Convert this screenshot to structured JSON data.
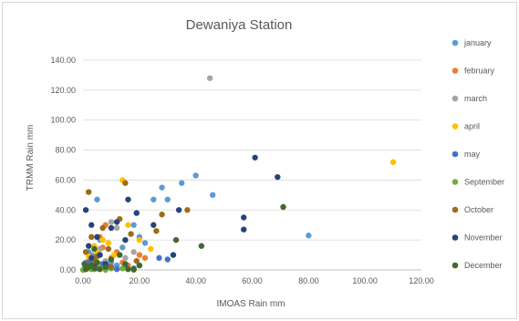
{
  "chart_data": {
    "type": "scatter",
    "title": "Dewaniya Station",
    "xlabel": "IMOAS Rain mm",
    "ylabel": "TRMM  Rain mm",
    "xlim": [
      0,
      120
    ],
    "ylim": [
      0,
      140
    ],
    "x_ticks": [
      "0.00",
      "20.00",
      "40.00",
      "60.00",
      "80.00",
      "100.00",
      "120.00"
    ],
    "y_ticks": [
      "0.00",
      "20.00",
      "40.00",
      "60.00",
      "80.00",
      "100.00",
      "120.00",
      "140.00"
    ],
    "grid": "horizontal",
    "legend_position": "right",
    "series": [
      {
        "name": "january",
        "color": "#5b9bd5",
        "points": [
          [
            0.5,
            1
          ],
          [
            1,
            5
          ],
          [
            2,
            12
          ],
          [
            3,
            2
          ],
          [
            4,
            8
          ],
          [
            5,
            47
          ],
          [
            6,
            20
          ],
          [
            8,
            1
          ],
          [
            10,
            5
          ],
          [
            12,
            3
          ],
          [
            14,
            15
          ],
          [
            18,
            30
          ],
          [
            20,
            22
          ],
          [
            22,
            18
          ],
          [
            25,
            47
          ],
          [
            28,
            55
          ],
          [
            30,
            47
          ],
          [
            35,
            58
          ],
          [
            40,
            63
          ],
          [
            46,
            50
          ],
          [
            80,
            23
          ],
          [
            3,
            10
          ],
          [
            6,
            14
          ]
        ]
      },
      {
        "name": "february",
        "color": "#ed7d31",
        "points": [
          [
            1,
            2
          ],
          [
            2,
            6
          ],
          [
            3,
            4
          ],
          [
            5,
            10
          ],
          [
            6,
            22
          ],
          [
            7,
            15
          ],
          [
            8,
            30
          ],
          [
            10,
            8
          ],
          [
            12,
            12
          ],
          [
            14,
            5
          ],
          [
            16,
            3
          ],
          [
            20,
            10
          ],
          [
            22,
            8
          ],
          [
            2,
            1
          ],
          [
            4,
            3
          ]
        ]
      },
      {
        "name": "march",
        "color": "#a5a5a5",
        "points": [
          [
            1,
            1
          ],
          [
            2,
            3
          ],
          [
            3,
            5
          ],
          [
            5,
            2
          ],
          [
            6,
            14
          ],
          [
            8,
            6
          ],
          [
            10,
            32
          ],
          [
            12,
            28
          ],
          [
            15,
            8
          ],
          [
            18,
            12
          ],
          [
            45,
            128
          ],
          [
            4,
            0.5
          ]
        ]
      },
      {
        "name": "april",
        "color": "#ffc000",
        "points": [
          [
            1,
            3
          ],
          [
            2,
            9
          ],
          [
            3,
            1
          ],
          [
            4,
            16
          ],
          [
            5,
            12
          ],
          [
            7,
            20
          ],
          [
            9,
            18
          ],
          [
            11,
            10
          ],
          [
            14,
            60
          ],
          [
            16,
            30
          ],
          [
            20,
            20
          ],
          [
            24,
            14
          ],
          [
            110,
            72
          ],
          [
            6,
            4
          ]
        ]
      },
      {
        "name": "may",
        "color": "#4472c4",
        "points": [
          [
            0.5,
            0.5
          ],
          [
            1,
            1
          ],
          [
            2,
            2
          ],
          [
            3,
            3
          ],
          [
            4,
            6
          ],
          [
            5,
            1
          ],
          [
            7,
            4
          ],
          [
            9,
            2
          ],
          [
            12,
            0.5
          ],
          [
            15,
            3
          ],
          [
            18,
            1
          ],
          [
            27,
            8
          ],
          [
            30,
            7
          ],
          [
            2,
            5
          ]
        ]
      },
      {
        "name": "September",
        "color": "#70ad47",
        "points": [
          [
            0,
            0
          ],
          [
            1,
            0.5
          ],
          [
            2,
            1
          ],
          [
            3,
            0.5
          ],
          [
            4,
            2
          ],
          [
            6,
            1
          ],
          [
            8,
            0
          ],
          [
            10,
            1
          ],
          [
            14,
            1
          ],
          [
            18,
            0
          ],
          [
            3,
            1.5
          ]
        ]
      },
      {
        "name": "October",
        "color": "#9e6b1a",
        "points": [
          [
            1,
            12
          ],
          [
            2,
            52
          ],
          [
            3,
            22
          ],
          [
            4,
            6
          ],
          [
            5,
            9
          ],
          [
            7,
            28
          ],
          [
            9,
            14
          ],
          [
            10,
            2
          ],
          [
            13,
            34
          ],
          [
            15,
            58
          ],
          [
            17,
            24
          ],
          [
            19,
            6
          ],
          [
            26,
            26
          ],
          [
            28,
            37
          ],
          [
            37,
            40
          ],
          [
            2,
            2
          ]
        ]
      },
      {
        "name": "November",
        "color": "#264478",
        "points": [
          [
            1,
            40
          ],
          [
            2,
            16
          ],
          [
            3,
            30
          ],
          [
            4,
            2
          ],
          [
            5,
            22
          ],
          [
            6,
            10
          ],
          [
            8,
            4
          ],
          [
            10,
            28
          ],
          [
            12,
            32
          ],
          [
            15,
            20
          ],
          [
            16,
            47
          ],
          [
            19,
            38
          ],
          [
            25,
            30
          ],
          [
            32,
            10
          ],
          [
            34,
            40
          ],
          [
            57,
            35
          ],
          [
            57,
            27
          ],
          [
            61,
            75
          ],
          [
            69,
            62
          ],
          [
            3,
            8
          ]
        ]
      },
      {
        "name": "December",
        "color": "#43682b",
        "points": [
          [
            0.5,
            4
          ],
          [
            1,
            0.5
          ],
          [
            2,
            2
          ],
          [
            3,
            3
          ],
          [
            4,
            1
          ],
          [
            5,
            5
          ],
          [
            6,
            0.5
          ],
          [
            8,
            2
          ],
          [
            10,
            7
          ],
          [
            13,
            10
          ],
          [
            15,
            4
          ],
          [
            16,
            0.5
          ],
          [
            18,
            0.5
          ],
          [
            20,
            3
          ],
          [
            33,
            20
          ],
          [
            42,
            16
          ],
          [
            71,
            42
          ],
          [
            4,
            14
          ]
        ]
      }
    ]
  }
}
